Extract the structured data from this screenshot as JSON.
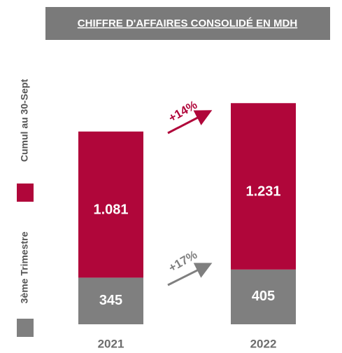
{
  "chart_data": {
    "type": "stacked_bar",
    "title": "CHIFFRE D'AFFAIRES CONSOLIDÉ EN MDH",
    "categories": [
      "2021",
      "2022"
    ],
    "series": [
      {
        "name": "3ème Trimestre",
        "color": "#7f7f7f",
        "values": [
          345,
          405
        ],
        "value_labels": [
          "345",
          "405"
        ]
      },
      {
        "name": "Cumul au 30-Sept",
        "color": "#b0063a",
        "values": [
          1081,
          1231
        ],
        "value_labels": [
          "1.081",
          "1.231"
        ]
      }
    ],
    "annotations": [
      {
        "text": "+14%",
        "color": "#b0063a"
      },
      {
        "text": "+17%",
        "color": "#7f7f7f"
      }
    ],
    "legend": "left"
  }
}
